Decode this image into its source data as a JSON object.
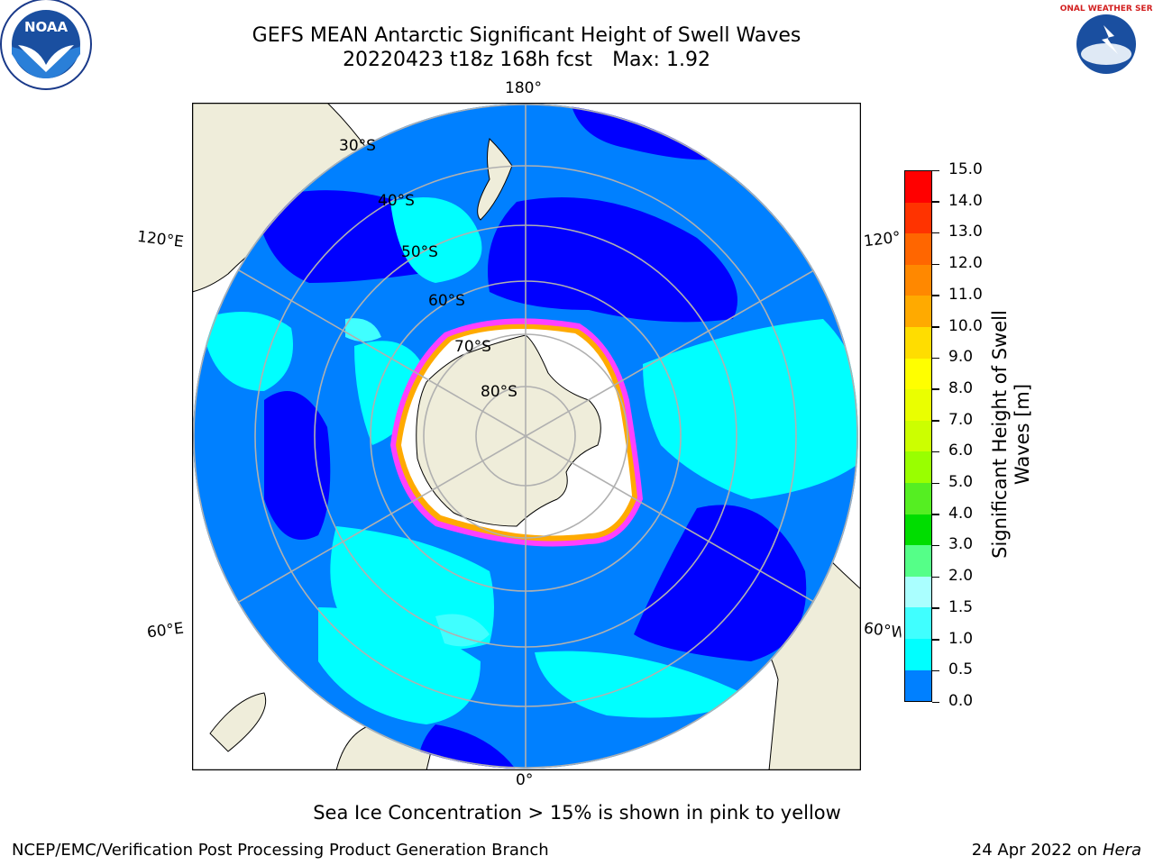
{
  "title": {
    "line1": "GEFS MEAN Antarctic Significant Height of Swell Waves",
    "line2_run": "20220423 t18z 168h fcst",
    "line2_max": "Max: 1.92"
  },
  "map": {
    "projection": "south-polar-stereographic",
    "lon_labels": {
      "top": "180°",
      "bottom": "0°",
      "upper_left": "120°E",
      "lower_left": "60°E",
      "upper_right": "120°W",
      "lower_right": "60°W"
    },
    "lat_labels": [
      "30°S",
      "40°S",
      "50°S",
      "60°S",
      "70°S",
      "80°S"
    ],
    "colors": {
      "land": "#efedda",
      "ocean_0_0.5": "#0000ff",
      "ocean_0.5_1.0": "#0080ff",
      "ocean_1.0_1.5": "#00ffff",
      "ocean_1.5_2.0": "#40ffff",
      "ice_edge": "#ff40ff",
      "ice_inner": "#ffaa00",
      "grid": "#b0b0b0"
    }
  },
  "colorbar": {
    "label": "Significant Height of Swell Waves [m]",
    "ticks": [
      "15.0",
      "14.0",
      "13.0",
      "12.0",
      "11.0",
      "10.0",
      "9.0",
      "8.0",
      "7.0",
      "6.0",
      "5.0",
      "4.0",
      "3.0",
      "2.0",
      "1.5",
      "1.0",
      "0.5",
      "0.0"
    ],
    "colors": [
      "#ff0000",
      "#ff3300",
      "#ff6600",
      "#ff8800",
      "#ffaa00",
      "#ffdd00",
      "#ffff00",
      "#eaff00",
      "#ccff00",
      "#99ff00",
      "#55ee22",
      "#00dd00",
      "#55ff88",
      "#aaffff",
      "#40ffff",
      "#00ffff",
      "#0080ff",
      "#0000ff"
    ]
  },
  "note": "Sea Ice Concentration > 15% is shown in pink to yellow",
  "footer": {
    "left": "NCEP/EMC/Verification Post Processing Product Generation Branch",
    "right_prefix": "24 Apr 2022 on ",
    "right_host": "Hera"
  },
  "logos": {
    "left": "NOAA",
    "right": "NATIONAL WEATHER SERVICE"
  }
}
